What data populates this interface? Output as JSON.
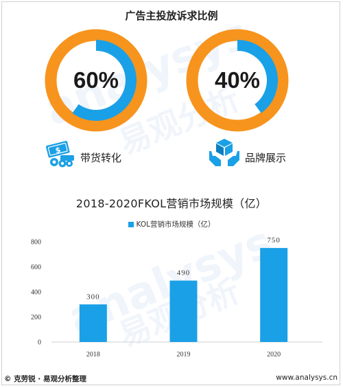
{
  "ratio_section": {
    "title": "广告主投放诉求比例",
    "items": [
      {
        "label": "带货转化",
        "percent_label": "60%",
        "fraction": 0.6,
        "icon": "money-coins-icon"
      },
      {
        "label": "品牌展示",
        "percent_label": "40%",
        "fraction": 0.4,
        "icon": "brand-hands-box-icon"
      }
    ]
  },
  "colors": {
    "ring_outer": "#f7941d",
    "ring_fill": "#1aa0e6",
    "bar": "#1aa0e6"
  },
  "chart_data": {
    "type": "bar",
    "title": "2018-2020FKOL营销市场规模（亿）",
    "categories": [
      "2018",
      "2019",
      "2020"
    ],
    "series": [
      {
        "name": "KOL营销市场规模（亿）",
        "values": [
          300,
          490,
          750
        ]
      }
    ],
    "value_labels": [
      "300",
      "490",
      "750"
    ],
    "yticks": [
      "0",
      "200",
      "400",
      "600",
      "800"
    ],
    "ylim": [
      0,
      800
    ],
    "legend_position": "top-center"
  },
  "footer": {
    "left": "© 克劳锐 · 易观分析整理",
    "right": "www.analysys.cn"
  },
  "watermark": {
    "text1": "analysys",
    "text2": "易观分析"
  }
}
